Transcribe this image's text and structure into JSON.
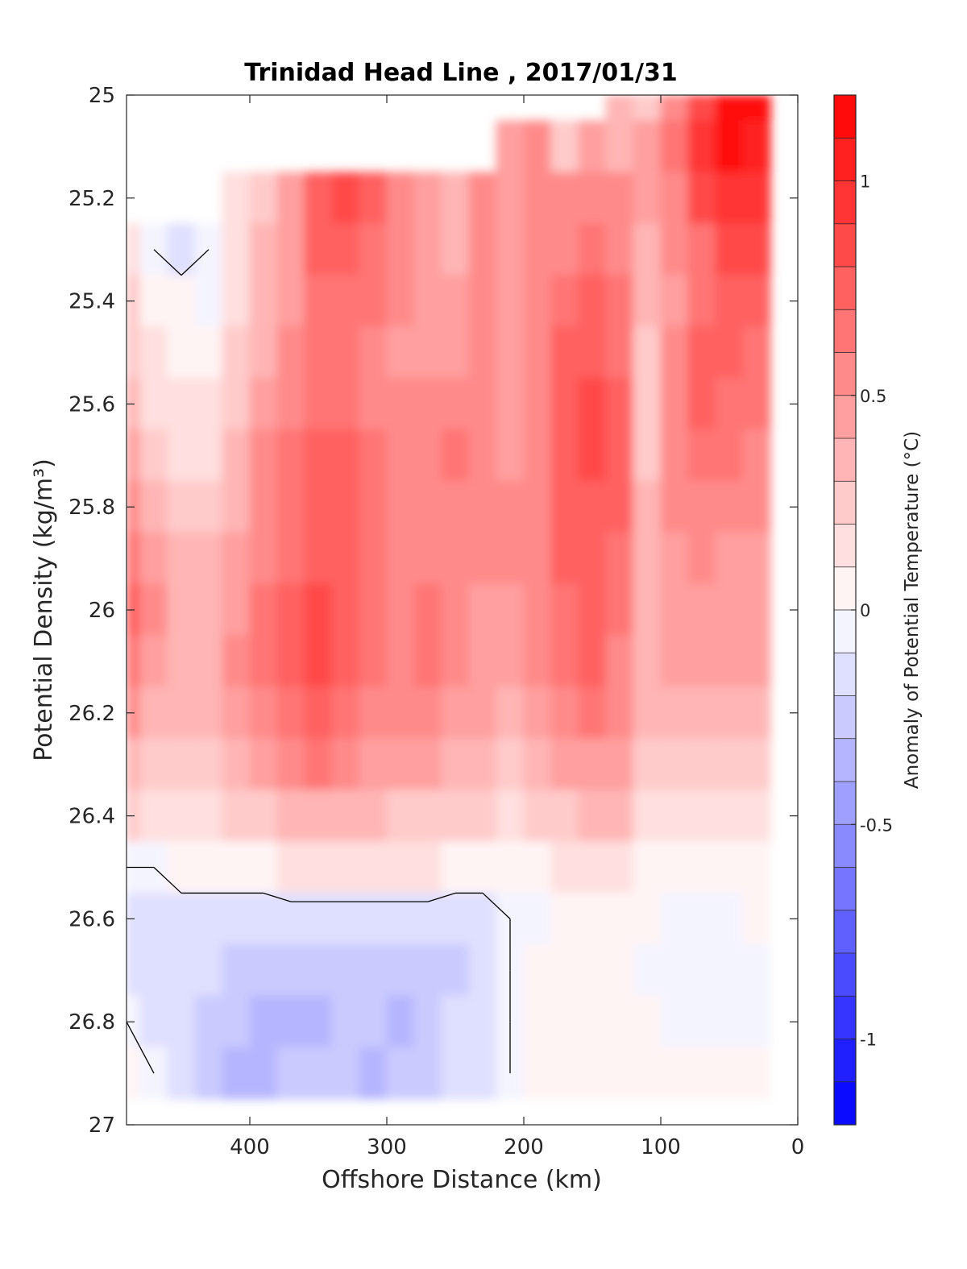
{
  "chart_data": {
    "type": "heatmap",
    "title": "Trinidad Head Line , 2017/01/31",
    "xlabel": "Offshore Distance (km)",
    "ylabel": "Potential Density (kg/m³)",
    "colorbar_label": "Anomaly of Potential Temperature (°C)",
    "xlim": [
      490,
      0
    ],
    "ylim": [
      25,
      27
    ],
    "x_ticks": [
      400,
      300,
      200,
      100,
      0
    ],
    "x_tick_labels": [
      "400",
      "300",
      "200",
      "100",
      "0"
    ],
    "y_ticks": [
      25,
      25.2,
      25.4,
      25.6,
      25.8,
      26,
      26.2,
      26.4,
      26.6,
      26.8,
      27
    ],
    "y_tick_labels": [
      "25",
      "25.2",
      "25.4",
      "25.6",
      "25.8",
      "26",
      "26.2",
      "26.4",
      "26.6",
      "26.8",
      "27"
    ],
    "colorbar_ticks": [
      1,
      0.5,
      0,
      -0.5,
      -1
    ],
    "colorbar_tick_labels": [
      "1",
      "0.5",
      "0",
      "-0.5",
      "-1"
    ],
    "clim": [
      -1.2,
      1.2
    ],
    "contour_levels": [
      -1.2,
      -1.1,
      -1.0,
      -0.9,
      -0.8,
      -0.7,
      -0.6,
      -0.5,
      -0.4,
      -0.3,
      -0.2,
      -0.1,
      0,
      0.1,
      0.2,
      0.3,
      0.4,
      0.5,
      0.6,
      0.7,
      0.8,
      0.9,
      1.0,
      1.1,
      1.2
    ],
    "colormap": {
      "negative": "#0000ff",
      "zero": "#ffffff",
      "positive": "#ff0000"
    },
    "zero_contour_color": "#000000",
    "grid": false,
    "grid_x": [
      490,
      470,
      450,
      430,
      410,
      390,
      370,
      350,
      330,
      310,
      290,
      270,
      250,
      230,
      210,
      190,
      170,
      150,
      130,
      110,
      90,
      70,
      50,
      30,
      20
    ],
    "grid_y": [
      25.0,
      25.1,
      25.2,
      25.3,
      25.4,
      25.5,
      25.6,
      25.7,
      25.8,
      25.9,
      26.0,
      26.1,
      26.2,
      26.3,
      26.4,
      26.5,
      26.6,
      26.7,
      26.8,
      26.9
    ],
    "values_by_row": [
      [
        null,
        null,
        null,
        null,
        null,
        null,
        null,
        null,
        null,
        null,
        null,
        null,
        null,
        null,
        null,
        null,
        null,
        null,
        0.4,
        0.3,
        0.6,
        0.9,
        1.2,
        1.2,
        1.2
      ],
      [
        null,
        null,
        null,
        null,
        null,
        null,
        null,
        null,
        null,
        null,
        null,
        null,
        null,
        null,
        0.5,
        0.6,
        0.3,
        0.5,
        0.4,
        0.5,
        0.7,
        1.0,
        1.2,
        1.1,
        1.1
      ],
      [
        null,
        null,
        null,
        null,
        0.2,
        0.3,
        0.5,
        0.8,
        0.9,
        0.8,
        0.6,
        0.5,
        0.4,
        0.6,
        0.5,
        0.6,
        0.6,
        0.6,
        0.6,
        0.5,
        0.6,
        0.9,
        1.0,
        1.0,
        1.0
      ],
      [
        0.2,
        0.0,
        -0.1,
        0.0,
        0.2,
        0.4,
        0.5,
        0.8,
        0.8,
        0.7,
        0.6,
        0.5,
        0.4,
        0.6,
        0.5,
        0.6,
        0.6,
        0.7,
        0.6,
        0.4,
        0.6,
        0.7,
        0.9,
        0.9,
        0.9
      ],
      [
        0.3,
        0.1,
        0.1,
        0.0,
        0.2,
        0.4,
        0.5,
        0.7,
        0.7,
        0.7,
        0.6,
        0.5,
        0.5,
        0.6,
        0.5,
        0.6,
        0.7,
        0.8,
        0.7,
        0.4,
        0.5,
        0.7,
        0.8,
        0.8,
        0.8
      ],
      [
        0.3,
        0.2,
        0.1,
        0.1,
        0.3,
        0.4,
        0.6,
        0.7,
        0.7,
        0.6,
        0.5,
        0.5,
        0.5,
        0.6,
        0.5,
        0.6,
        0.8,
        0.8,
        0.7,
        0.3,
        0.6,
        0.8,
        0.8,
        0.7,
        0.7
      ],
      [
        0.4,
        0.2,
        0.2,
        0.2,
        0.3,
        0.5,
        0.6,
        0.7,
        0.7,
        0.6,
        0.6,
        0.6,
        0.6,
        0.6,
        0.5,
        0.6,
        0.8,
        0.9,
        0.8,
        0.3,
        0.6,
        0.8,
        0.7,
        0.7,
        0.7
      ],
      [
        0.5,
        0.3,
        0.2,
        0.2,
        0.4,
        0.6,
        0.7,
        0.8,
        0.8,
        0.7,
        0.6,
        0.6,
        0.7,
        0.6,
        0.5,
        0.6,
        0.8,
        0.9,
        0.8,
        0.3,
        0.6,
        0.7,
        0.7,
        0.6,
        0.6
      ],
      [
        0.6,
        0.4,
        0.3,
        0.3,
        0.4,
        0.6,
        0.7,
        0.8,
        0.8,
        0.7,
        0.6,
        0.6,
        0.6,
        0.6,
        0.6,
        0.6,
        0.8,
        0.8,
        0.8,
        0.4,
        0.6,
        0.6,
        0.6,
        0.6,
        0.6
      ],
      [
        0.7,
        0.5,
        0.4,
        0.4,
        0.5,
        0.6,
        0.7,
        0.8,
        0.8,
        0.7,
        0.6,
        0.6,
        0.6,
        0.6,
        0.6,
        0.6,
        0.8,
        0.8,
        0.7,
        0.4,
        0.5,
        0.6,
        0.5,
        0.5,
        0.5
      ],
      [
        0.8,
        0.6,
        0.4,
        0.4,
        0.5,
        0.7,
        0.8,
        0.9,
        0.8,
        0.7,
        0.6,
        0.7,
        0.6,
        0.5,
        0.5,
        0.6,
        0.7,
        0.8,
        0.7,
        0.4,
        0.5,
        0.5,
        0.5,
        0.5,
        0.5
      ],
      [
        0.7,
        0.5,
        0.4,
        0.4,
        0.6,
        0.7,
        0.8,
        0.9,
        0.8,
        0.7,
        0.6,
        0.7,
        0.6,
        0.5,
        0.5,
        0.6,
        0.7,
        0.8,
        0.6,
        0.4,
        0.5,
        0.5,
        0.5,
        0.5,
        0.5
      ],
      [
        0.6,
        0.4,
        0.4,
        0.4,
        0.5,
        0.6,
        0.7,
        0.8,
        0.7,
        0.6,
        0.6,
        0.6,
        0.5,
        0.5,
        0.4,
        0.5,
        0.6,
        0.7,
        0.6,
        0.4,
        0.4,
        0.4,
        0.4,
        0.4,
        0.4
      ],
      [
        0.4,
        0.3,
        0.3,
        0.3,
        0.4,
        0.5,
        0.6,
        0.7,
        0.6,
        0.5,
        0.5,
        0.5,
        0.4,
        0.4,
        0.3,
        0.4,
        0.5,
        0.5,
        0.5,
        0.3,
        0.3,
        0.3,
        0.3,
        0.3,
        0.3
      ],
      [
        0.3,
        0.2,
        0.2,
        0.2,
        0.3,
        0.3,
        0.4,
        0.4,
        0.4,
        0.4,
        0.3,
        0.3,
        0.3,
        0.3,
        0.2,
        0.3,
        0.3,
        0.4,
        0.4,
        0.2,
        0.2,
        0.2,
        0.2,
        0.2,
        0.2
      ],
      [
        0.0,
        0.0,
        0.1,
        0.1,
        0.1,
        0.1,
        0.2,
        0.2,
        0.2,
        0.2,
        0.2,
        0.2,
        0.1,
        0.1,
        0.1,
        0.1,
        0.2,
        0.2,
        0.2,
        0.1,
        0.1,
        0.1,
        0.1,
        0.1,
        0.1
      ],
      [
        -0.1,
        -0.1,
        -0.1,
        -0.1,
        -0.1,
        -0.1,
        -0.1,
        -0.1,
        -0.1,
        -0.1,
        -0.1,
        -0.1,
        -0.1,
        -0.1,
        0.0,
        0.0,
        0.1,
        0.1,
        0.1,
        0.1,
        0.0,
        0.0,
        0.0,
        0.1,
        0.1
      ],
      [
        -0.1,
        -0.1,
        -0.1,
        -0.1,
        -0.2,
        -0.2,
        -0.2,
        -0.2,
        -0.2,
        -0.2,
        -0.2,
        -0.2,
        -0.2,
        -0.1,
        0.0,
        0.1,
        0.1,
        0.1,
        0.1,
        0.0,
        0.0,
        0.0,
        0.0,
        0.0,
        0.0
      ],
      [
        0.0,
        -0.1,
        -0.1,
        -0.2,
        -0.2,
        -0.3,
        -0.3,
        -0.3,
        -0.2,
        -0.2,
        -0.3,
        -0.2,
        -0.1,
        -0.1,
        0.0,
        0.1,
        0.1,
        0.1,
        0.1,
        0.1,
        0.0,
        0.0,
        0.0,
        0.0,
        0.0
      ],
      [
        0.1,
        0.0,
        -0.1,
        -0.2,
        -0.3,
        -0.3,
        -0.2,
        -0.2,
        -0.2,
        -0.3,
        -0.2,
        -0.2,
        -0.1,
        -0.1,
        0.0,
        0.1,
        0.1,
        0.1,
        0.1,
        0.1,
        0.1,
        0.1,
        0.1,
        0.1,
        0.1
      ]
    ]
  }
}
